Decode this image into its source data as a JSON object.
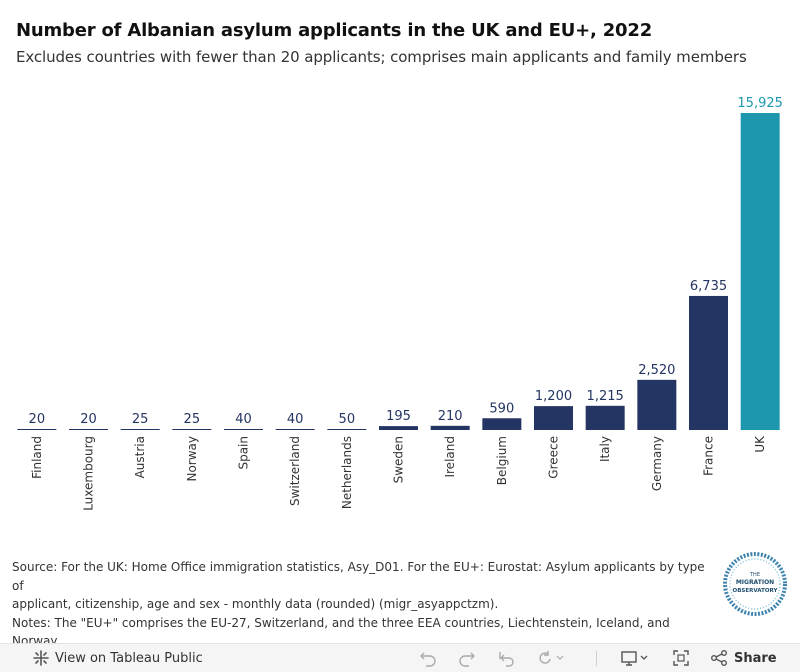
{
  "title": "Number of Albanian asylum applicants in the UK and EU+, 2022",
  "subtitle": "Excludes countries with fewer than 20 applicants; comprises main applicants and family members",
  "chart_data": {
    "type": "bar",
    "categories": [
      "Finland",
      "Luxembourg",
      "Austria",
      "Norway",
      "Spain",
      "Switzerland",
      "Netherlands",
      "Sweden",
      "Ireland",
      "Belgium",
      "Greece",
      "Italy",
      "Germany",
      "France",
      "UK"
    ],
    "values": [
      20,
      20,
      25,
      25,
      40,
      40,
      50,
      195,
      210,
      590,
      1200,
      1215,
      2520,
      6735,
      15925
    ],
    "data_labels": [
      "20",
      "20",
      "25",
      "25",
      "40",
      "40",
      "50",
      "195",
      "210",
      "590",
      "1,200",
      "1,215",
      "2,520",
      "6,735",
      "15,925"
    ],
    "colors": {
      "default": "#253563",
      "highlight": "#1d97ad",
      "highlight_category": "UK"
    },
    "ylim": [
      0,
      15925
    ],
    "grid": false,
    "xlabel": "",
    "ylabel": ""
  },
  "footnotes": {
    "source_line1": "Source: For the UK: Home Office immigration statistics, Asy_D01. For the EU+: Eurostat: Asylum applicants by type of",
    "source_line2": "applicant, citizenship, age and sex - monthly data (rounded) (migr_asyappctzm).",
    "notes": "Notes: The \"EU+\" comprises the EU-27, Switzerland, and the three EEA countries, Liechtenstein, Iceland, and Norway."
  },
  "logo": {
    "line1": "THE",
    "line2": "MIGRATION",
    "line3": "OBSERVATORY"
  },
  "toolbar": {
    "view_label": "View on Tableau Public",
    "share_label": "Share",
    "icons": [
      "tableau-icon",
      "undo-icon",
      "redo-icon",
      "revert-icon",
      "refresh-icon",
      "download-icon",
      "fullscreen-icon",
      "share-icon"
    ]
  }
}
